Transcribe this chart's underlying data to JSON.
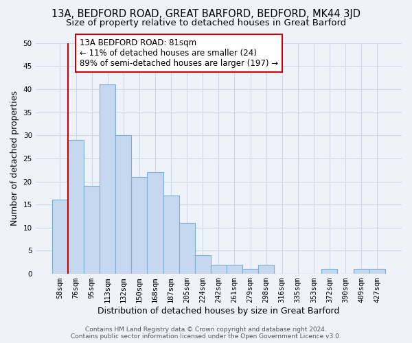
{
  "title": "13A, BEDFORD ROAD, GREAT BARFORD, BEDFORD, MK44 3JD",
  "subtitle": "Size of property relative to detached houses in Great Barford",
  "xlabel": "Distribution of detached houses by size in Great Barford",
  "ylabel": "Number of detached properties",
  "bar_color": "#c5d8f0",
  "bar_edge_color": "#7bafd4",
  "bin_labels": [
    "58sqm",
    "76sqm",
    "95sqm",
    "113sqm",
    "132sqm",
    "150sqm",
    "168sqm",
    "187sqm",
    "205sqm",
    "224sqm",
    "242sqm",
    "261sqm",
    "279sqm",
    "298sqm",
    "316sqm",
    "335sqm",
    "353sqm",
    "372sqm",
    "390sqm",
    "409sqm",
    "427sqm"
  ],
  "bar_heights": [
    16,
    29,
    19,
    41,
    30,
    21,
    22,
    17,
    11,
    4,
    2,
    2,
    1,
    2,
    0,
    0,
    0,
    1,
    0,
    1,
    1
  ],
  "ylim": [
    0,
    50
  ],
  "yticks": [
    0,
    5,
    10,
    15,
    20,
    25,
    30,
    35,
    40,
    45,
    50
  ],
  "property_line_x": 0.5,
  "annotation_line1": "13A BEDFORD ROAD: 81sqm",
  "annotation_line2": "← 11% of detached houses are smaller (24)",
  "annotation_line3": "89% of semi-detached houses are larger (197) →",
  "footer_text": "Contains HM Land Registry data © Crown copyright and database right 2024.\nContains public sector information licensed under the Open Government Licence v3.0.",
  "background_color": "#eef2f9",
  "grid_color": "#d0d8e8",
  "title_fontsize": 10.5,
  "subtitle_fontsize": 9.5,
  "axis_label_fontsize": 9,
  "tick_fontsize": 7.5,
  "footer_fontsize": 6.5,
  "annotation_fontsize": 8.5
}
